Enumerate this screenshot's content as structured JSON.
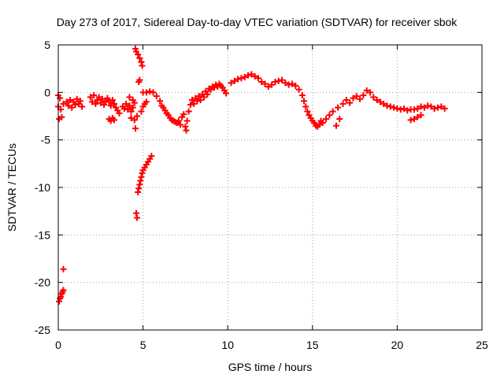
{
  "chart_data": {
    "type": "scatter",
    "title": "Day 273 of 2017, Sidereal Day-to-day VTEC variation (SDTVAR) for receiver sbok",
    "xlabel": "GPS time / hours",
    "ylabel": "SDTVAR / TECUs",
    "xlim": [
      0,
      25
    ],
    "ylim": [
      -25,
      5
    ],
    "xticks": [
      0,
      5,
      10,
      15,
      20,
      25
    ],
    "yticks": [
      -25,
      -20,
      -15,
      -10,
      -5,
      0,
      5
    ],
    "grid": true,
    "marker": "plus",
    "color": "#ff0000",
    "series": [
      {
        "name": "SDTVAR",
        "points": [
          [
            0.05,
            -22.0
          ],
          [
            0.1,
            -21.7
          ],
          [
            0.15,
            -21.5
          ],
          [
            0.2,
            -21.2
          ],
          [
            0.25,
            -21.0
          ],
          [
            0.3,
            -20.8
          ],
          [
            0.3,
            -18.6
          ],
          [
            0.0,
            -0.3
          ],
          [
            0.1,
            -0.6
          ],
          [
            0.0,
            -1.5
          ],
          [
            0.15,
            -1.8
          ],
          [
            0.05,
            -2.8
          ],
          [
            0.2,
            -2.6
          ],
          [
            0.3,
            -1.2
          ],
          [
            0.5,
            -1.0
          ],
          [
            0.6,
            -1.4
          ],
          [
            0.7,
            -0.8
          ],
          [
            0.8,
            -1.6
          ],
          [
            0.9,
            -1.0
          ],
          [
            1.0,
            -1.3
          ],
          [
            1.1,
            -0.7
          ],
          [
            1.2,
            -1.2
          ],
          [
            1.3,
            -0.9
          ],
          [
            1.4,
            -1.5
          ],
          [
            1.9,
            -0.5
          ],
          [
            2.0,
            -1.0
          ],
          [
            2.1,
            -0.3
          ],
          [
            2.2,
            -1.2
          ],
          [
            2.3,
            -0.8
          ],
          [
            2.4,
            -0.5
          ],
          [
            2.5,
            -1.1
          ],
          [
            2.6,
            -0.7
          ],
          [
            2.7,
            -1.3
          ],
          [
            2.8,
            -0.9
          ],
          [
            2.9,
            -0.6
          ],
          [
            3.0,
            -1.0
          ],
          [
            3.1,
            -1.4
          ],
          [
            3.2,
            -0.8
          ],
          [
            3.3,
            -1.2
          ],
          [
            3.4,
            -1.6
          ],
          [
            3.0,
            -2.8
          ],
          [
            3.1,
            -3.0
          ],
          [
            3.2,
            -2.7
          ],
          [
            3.3,
            -2.9
          ],
          [
            3.5,
            -1.9
          ],
          [
            3.6,
            -2.2
          ],
          [
            3.8,
            -1.5
          ],
          [
            3.9,
            -1.7
          ],
          [
            4.0,
            -1.2
          ],
          [
            4.1,
            -1.8
          ],
          [
            4.2,
            -1.4
          ],
          [
            4.3,
            -2.0
          ],
          [
            4.4,
            -1.6
          ],
          [
            4.5,
            -1.1
          ],
          [
            4.2,
            -0.5
          ],
          [
            4.4,
            -0.8
          ],
          [
            4.3,
            -2.7
          ],
          [
            4.5,
            -2.9
          ],
          [
            4.55,
            -3.8
          ],
          [
            4.65,
            -2.5
          ],
          [
            4.55,
            4.6
          ],
          [
            4.6,
            4.3
          ],
          [
            4.7,
            4.0
          ],
          [
            4.8,
            3.6
          ],
          [
            4.9,
            3.2
          ],
          [
            4.95,
            2.8
          ],
          [
            4.75,
            1.1
          ],
          [
            4.8,
            1.3
          ],
          [
            4.6,
            -12.7
          ],
          [
            4.65,
            -13.2
          ],
          [
            4.7,
            -10.5
          ],
          [
            4.75,
            -10.1
          ],
          [
            4.8,
            -9.7
          ],
          [
            4.85,
            -9.3
          ],
          [
            4.9,
            -8.9
          ],
          [
            4.95,
            -8.5
          ],
          [
            5.0,
            -8.2
          ],
          [
            5.1,
            -7.9
          ],
          [
            5.2,
            -7.6
          ],
          [
            5.3,
            -7.3
          ],
          [
            5.4,
            -7.0
          ],
          [
            5.5,
            -6.7
          ],
          [
            4.9,
            -2.0
          ],
          [
            5.0,
            -1.5
          ],
          [
            5.1,
            -1.2
          ],
          [
            5.2,
            -1.0
          ],
          [
            5.0,
            0.0
          ],
          [
            5.2,
            0.0
          ],
          [
            5.4,
            0.1
          ],
          [
            5.6,
            0.0
          ],
          [
            5.8,
            -0.4
          ],
          [
            6.0,
            -0.9
          ],
          [
            6.1,
            -1.4
          ],
          [
            6.2,
            -1.6
          ],
          [
            6.3,
            -1.9
          ],
          [
            6.4,
            -2.2
          ],
          [
            6.5,
            -2.4
          ],
          [
            6.6,
            -2.7
          ],
          [
            6.7,
            -2.9
          ],
          [
            6.8,
            -3.0
          ],
          [
            6.9,
            -3.1
          ],
          [
            7.0,
            -3.2
          ],
          [
            7.1,
            -3.0
          ],
          [
            7.2,
            -3.4
          ],
          [
            7.3,
            -2.6
          ],
          [
            7.4,
            -2.3
          ],
          [
            7.5,
            -3.6
          ],
          [
            7.55,
            -4.0
          ],
          [
            7.6,
            -3.0
          ],
          [
            7.7,
            -2.0
          ],
          [
            7.8,
            -1.3
          ],
          [
            7.9,
            -0.8
          ],
          [
            8.0,
            -1.2
          ],
          [
            8.1,
            -0.6
          ],
          [
            8.2,
            -0.9
          ],
          [
            8.3,
            -0.4
          ],
          [
            8.4,
            -0.8
          ],
          [
            8.5,
            -0.2
          ],
          [
            8.6,
            -0.5
          ],
          [
            8.7,
            0.1
          ],
          [
            8.8,
            -0.2
          ],
          [
            8.9,
            0.4
          ],
          [
            9.0,
            0.3
          ],
          [
            9.1,
            0.6
          ],
          [
            9.2,
            0.5
          ],
          [
            9.3,
            0.8
          ],
          [
            9.4,
            0.6
          ],
          [
            9.5,
            0.9
          ],
          [
            9.6,
            0.7
          ],
          [
            9.7,
            0.5
          ],
          [
            9.8,
            0.2
          ],
          [
            9.9,
            -0.1
          ],
          [
            10.2,
            1.0
          ],
          [
            10.4,
            1.2
          ],
          [
            10.6,
            1.4
          ],
          [
            10.8,
            1.5
          ],
          [
            11.0,
            1.6
          ],
          [
            11.2,
            1.8
          ],
          [
            11.4,
            1.9
          ],
          [
            11.6,
            1.7
          ],
          [
            11.8,
            1.5
          ],
          [
            12.0,
            1.1
          ],
          [
            12.2,
            0.9
          ],
          [
            12.4,
            0.6
          ],
          [
            12.6,
            0.8
          ],
          [
            12.8,
            1.1
          ],
          [
            13.0,
            1.2
          ],
          [
            13.2,
            1.3
          ],
          [
            13.4,
            1.0
          ],
          [
            13.6,
            0.8
          ],
          [
            13.8,
            0.9
          ],
          [
            14.0,
            0.7
          ],
          [
            14.2,
            0.3
          ],
          [
            14.4,
            -0.3
          ],
          [
            14.5,
            -0.9
          ],
          [
            14.6,
            -1.5
          ],
          [
            14.7,
            -2.0
          ],
          [
            14.8,
            -2.4
          ],
          [
            14.9,
            -2.7
          ],
          [
            15.0,
            -3.0
          ],
          [
            15.1,
            -3.2
          ],
          [
            15.2,
            -3.5
          ],
          [
            15.3,
            -3.6
          ],
          [
            15.4,
            -3.4
          ],
          [
            15.5,
            -3.0
          ],
          [
            15.6,
            -3.2
          ],
          [
            15.8,
            -2.8
          ],
          [
            16.0,
            -2.4
          ],
          [
            16.2,
            -2.0
          ],
          [
            16.4,
            -3.5
          ],
          [
            16.5,
            -1.6
          ],
          [
            16.6,
            -2.8
          ],
          [
            16.8,
            -1.2
          ],
          [
            17.0,
            -0.8
          ],
          [
            17.2,
            -1.1
          ],
          [
            17.4,
            -0.6
          ],
          [
            17.6,
            -0.4
          ],
          [
            17.8,
            -0.7
          ],
          [
            18.0,
            -0.3
          ],
          [
            18.2,
            0.2
          ],
          [
            18.4,
            0.0
          ],
          [
            18.6,
            -0.5
          ],
          [
            18.8,
            -0.8
          ],
          [
            19.0,
            -1.0
          ],
          [
            19.2,
            -1.2
          ],
          [
            19.4,
            -1.4
          ],
          [
            19.6,
            -1.5
          ],
          [
            19.8,
            -1.6
          ],
          [
            20.0,
            -1.7
          ],
          [
            20.2,
            -1.8
          ],
          [
            20.4,
            -1.7
          ],
          [
            20.6,
            -1.9
          ],
          [
            20.8,
            -1.8
          ],
          [
            21.0,
            -1.8
          ],
          [
            21.2,
            -1.7
          ],
          [
            21.4,
            -1.5
          ],
          [
            21.6,
            -1.6
          ],
          [
            21.8,
            -1.4
          ],
          [
            22.0,
            -1.5
          ],
          [
            22.2,
            -1.7
          ],
          [
            22.4,
            -1.6
          ],
          [
            22.6,
            -1.5
          ],
          [
            22.8,
            -1.7
          ],
          [
            20.8,
            -2.9
          ],
          [
            21.0,
            -2.8
          ],
          [
            21.2,
            -2.6
          ],
          [
            21.4,
            -2.4
          ]
        ]
      }
    ]
  }
}
